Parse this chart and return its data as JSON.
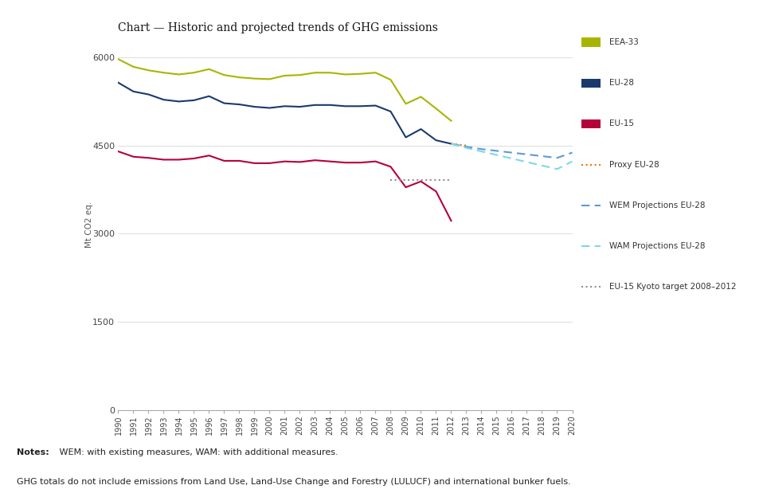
{
  "title": "Chart — Historic and projected trends of GHG emissions",
  "ylabel": "Mt CO2 eq.",
  "ylim": [
    0,
    6300
  ],
  "yticks": [
    0,
    1500,
    3000,
    4500,
    6000
  ],
  "background_color": "#ffffff",
  "footer_bg": "#d8d8d8",
  "notes_bold": "Notes:",
  "notes_line1": " WEM: with existing measures, WAM: with additional measures.",
  "notes_line2": "GHG totals do not include emissions from Land Use, Land-Use Change and Forestry (LULUCF) and international bunker fuels.",
  "eea33_years": [
    1990,
    1991,
    1992,
    1993,
    1994,
    1995,
    1996,
    1997,
    1998,
    1999,
    2000,
    2001,
    2002,
    2003,
    2004,
    2005,
    2006,
    2007,
    2008,
    2009,
    2010,
    2011,
    2012
  ],
  "eea33_values": [
    5970,
    5840,
    5780,
    5740,
    5710,
    5740,
    5800,
    5700,
    5660,
    5640,
    5630,
    5690,
    5700,
    5740,
    5740,
    5710,
    5720,
    5740,
    5620,
    5210,
    5330,
    5130,
    4920
  ],
  "eu28_years": [
    1990,
    1991,
    1992,
    1993,
    1994,
    1995,
    1996,
    1997,
    1998,
    1999,
    2000,
    2001,
    2002,
    2003,
    2004,
    2005,
    2006,
    2007,
    2008,
    2009,
    2010,
    2011,
    2012
  ],
  "eu28_values": [
    5570,
    5420,
    5370,
    5280,
    5250,
    5270,
    5340,
    5220,
    5200,
    5160,
    5140,
    5170,
    5160,
    5190,
    5190,
    5170,
    5170,
    5180,
    5080,
    4640,
    4780,
    4590,
    4530
  ],
  "eu15_years": [
    1990,
    1991,
    1992,
    1993,
    1994,
    1995,
    1996,
    1997,
    1998,
    1999,
    2000,
    2001,
    2002,
    2003,
    2004,
    2005,
    2006,
    2007,
    2008,
    2009,
    2010,
    2011,
    2012
  ],
  "eu15_values": [
    4400,
    4310,
    4290,
    4260,
    4260,
    4280,
    4330,
    4240,
    4240,
    4200,
    4200,
    4230,
    4220,
    4250,
    4230,
    4210,
    4210,
    4230,
    4140,
    3790,
    3890,
    3720,
    3220
  ],
  "proxy_years": [
    2012,
    2013
  ],
  "proxy_values": [
    4530,
    4500
  ],
  "wem_years": [
    2012,
    2013,
    2014,
    2015,
    2016,
    2017,
    2018,
    2019,
    2020
  ],
  "wem_values": [
    4530,
    4480,
    4440,
    4410,
    4380,
    4350,
    4320,
    4290,
    4380
  ],
  "wam_years": [
    2012,
    2013,
    2014,
    2015,
    2016,
    2017,
    2018,
    2019,
    2020
  ],
  "wam_values": [
    4530,
    4460,
    4400,
    4340,
    4280,
    4220,
    4160,
    4100,
    4230
  ],
  "kyoto_years": [
    2008,
    2009,
    2010,
    2011,
    2012
  ],
  "kyoto_values": [
    3920,
    3920,
    3920,
    3920,
    3920
  ],
  "color_eea33": "#a8b500",
  "color_eu28": "#1a3a6b",
  "color_eu15": "#b5003a",
  "color_proxy": "#e07b00",
  "color_wem": "#5b9bd5",
  "color_wam": "#7dd8e8",
  "color_kyoto": "#909090",
  "legend_entries": [
    {
      "label": "EEA-33",
      "color": "#a8b500",
      "style": "solid"
    },
    {
      "label": "EU-28",
      "color": "#1a3a6b",
      "style": "solid"
    },
    {
      "label": "EU-15",
      "color": "#b5003a",
      "style": "solid"
    },
    {
      "label": "Proxy EU-28",
      "color": "#e07b00",
      "style": "dotted"
    },
    {
      "label": "WEM Projections EU-28",
      "color": "#5b9bd5",
      "style": "dashed"
    },
    {
      "label": "WAM Projections EU-28",
      "color": "#7dd8e8",
      "style": "dashed"
    },
    {
      "label": "EU-15 Kyoto target 2008–2012",
      "color": "#909090",
      "style": "dotted"
    }
  ]
}
